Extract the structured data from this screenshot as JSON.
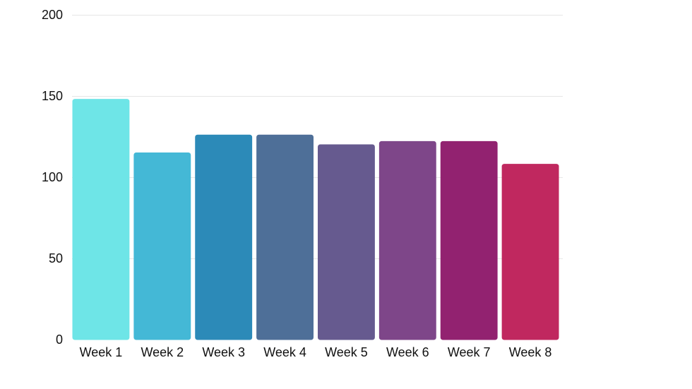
{
  "chart_data": {
    "type": "bar",
    "categories": [
      "Week 1",
      "Week 2",
      "Week 3",
      "Week 4",
      "Week 5",
      "Week 6",
      "Week 7",
      "Week 8"
    ],
    "values": [
      148,
      115,
      126,
      126,
      120,
      122,
      122,
      108
    ],
    "colors": [
      "#6ee5e7",
      "#44b8d6",
      "#2c8ab8",
      "#4e6f98",
      "#665a8f",
      "#7e4689",
      "#922270",
      "#c0285f"
    ],
    "title": "",
    "xlabel": "",
    "ylabel": "",
    "ylim": [
      0,
      200
    ],
    "yticks": [
      0,
      50,
      100,
      150,
      200
    ],
    "grid": true,
    "legend": "none"
  }
}
